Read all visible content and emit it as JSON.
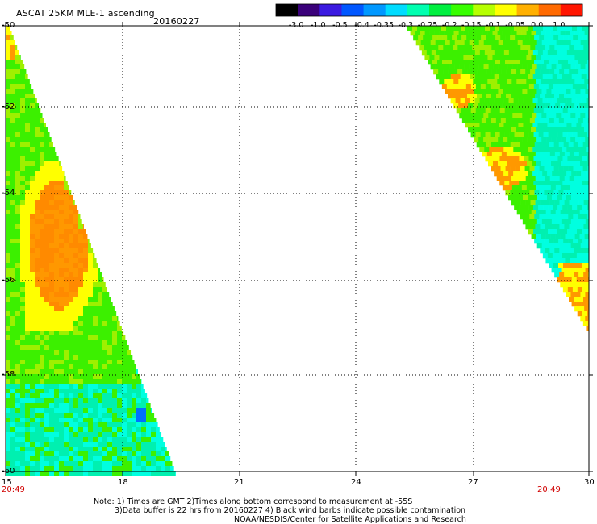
{
  "header": {
    "title": "ASCAT 25KM MLE-1 ascending",
    "date": "20160227"
  },
  "colorbar": {
    "labels": [
      "-3.0",
      "-1.0",
      "-0.5",
      "-0.4",
      "-0.35",
      "-0.3",
      "-0.25",
      "-0.2",
      "-0.15",
      "-0.1",
      "-0.05",
      "0.0",
      "1.0"
    ],
    "colors": [
      "#000000",
      "#3a007a",
      "#3b1ae0",
      "#0057ff",
      "#0098ff",
      "#00dcff",
      "#00ffb0",
      "#00f040",
      "#38ff00",
      "#b6ff00",
      "#ffff00",
      "#ffb000",
      "#ff6a00",
      "#ff1500"
    ]
  },
  "map": {
    "lat_labels": [
      "-50",
      "-52",
      "-54",
      "-56",
      "-58",
      "-60"
    ],
    "lon_labels": [
      "15",
      "18",
      "21",
      "24",
      "27",
      "30"
    ],
    "time_left": "20:49",
    "time_right": "20:49",
    "colors": {
      "green": "#3cf000",
      "lime": "#9ef000",
      "yellow": "#ffff00",
      "orange": "#ff9800",
      "cyan": "#00ffe0",
      "aqua": "#00f0b0",
      "blue": "#0070ff"
    }
  },
  "notes": {
    "line1": "Note: 1) Times are GMT 2)Times along bottom correspond to measurement at -55S",
    "line2": "3)Data buffer is 22 hrs from 20160227 4) Black wind barbs indicate possible contamination",
    "line3": "NOAA/NESDIS/Center for Satellite Applications and Research"
  }
}
